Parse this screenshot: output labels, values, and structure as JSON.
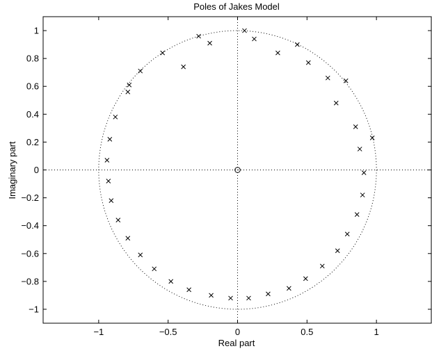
{
  "chart_data": {
    "type": "scatter",
    "title": "Poles of Jakes Model",
    "xlabel": "Real part",
    "ylabel": "Imaginary part",
    "xlim": [
      -1.4,
      1.4
    ],
    "ylim": [
      -1.1,
      1.1
    ],
    "xticks": [
      -1,
      -0.5,
      0,
      0.5,
      1
    ],
    "xtick_labels": [
      "−1",
      "−0.5",
      "0",
      "0.5",
      "1"
    ],
    "yticks": [
      1,
      0.8,
      0.6,
      0.4,
      0.2,
      0,
      -0.2,
      -0.4,
      -0.6,
      -0.8,
      -1
    ],
    "ytick_labels": [
      "1",
      "0.8",
      "0.6",
      "0.4",
      "0.2",
      "0",
      "−0.2",
      "−0.4",
      "−0.6",
      "−0.8",
      "−1"
    ],
    "grid": false,
    "unit_circle": true,
    "zero_axes": true,
    "colors": {
      "marker": "#000000",
      "axes": "#000000",
      "guides": "#000000"
    },
    "zeros": [
      {
        "x": 0,
        "y": 0
      }
    ],
    "poles": [
      {
        "x": 0.05,
        "y": 1.0
      },
      {
        "x": 0.12,
        "y": 0.94
      },
      {
        "x": 0.29,
        "y": 0.84
      },
      {
        "x": 0.43,
        "y": 0.9
      },
      {
        "x": 0.51,
        "y": 0.77
      },
      {
        "x": 0.65,
        "y": 0.66
      },
      {
        "x": 0.71,
        "y": 0.48
      },
      {
        "x": 0.78,
        "y": 0.64
      },
      {
        "x": 0.85,
        "y": 0.31
      },
      {
        "x": 0.97,
        "y": 0.23
      },
      {
        "x": 0.88,
        "y": 0.15
      },
      {
        "x": 0.91,
        "y": -0.02
      },
      {
        "x": 0.9,
        "y": -0.18
      },
      {
        "x": 0.86,
        "y": -0.32
      },
      {
        "x": 0.79,
        "y": -0.46
      },
      {
        "x": 0.72,
        "y": -0.58
      },
      {
        "x": 0.61,
        "y": -0.69
      },
      {
        "x": 0.49,
        "y": -0.78
      },
      {
        "x": 0.37,
        "y": -0.85
      },
      {
        "x": 0.22,
        "y": -0.89
      },
      {
        "x": 0.08,
        "y": -0.92
      },
      {
        "x": -0.05,
        "y": -0.92
      },
      {
        "x": -0.19,
        "y": -0.9
      },
      {
        "x": -0.35,
        "y": -0.86
      },
      {
        "x": -0.48,
        "y": -0.8
      },
      {
        "x": -0.6,
        "y": -0.71
      },
      {
        "x": -0.7,
        "y": -0.61
      },
      {
        "x": -0.79,
        "y": -0.49
      },
      {
        "x": -0.86,
        "y": -0.36
      },
      {
        "x": -0.91,
        "y": -0.22
      },
      {
        "x": -0.93,
        "y": -0.08
      },
      {
        "x": -0.94,
        "y": 0.07
      },
      {
        "x": -0.92,
        "y": 0.22
      },
      {
        "x": -0.88,
        "y": 0.38
      },
      {
        "x": -0.79,
        "y": 0.56
      },
      {
        "x": -0.78,
        "y": 0.61
      },
      {
        "x": -0.7,
        "y": 0.71
      },
      {
        "x": -0.54,
        "y": 0.84
      },
      {
        "x": -0.39,
        "y": 0.74
      },
      {
        "x": -0.28,
        "y": 0.96
      },
      {
        "x": -0.2,
        "y": 0.91
      }
    ]
  }
}
